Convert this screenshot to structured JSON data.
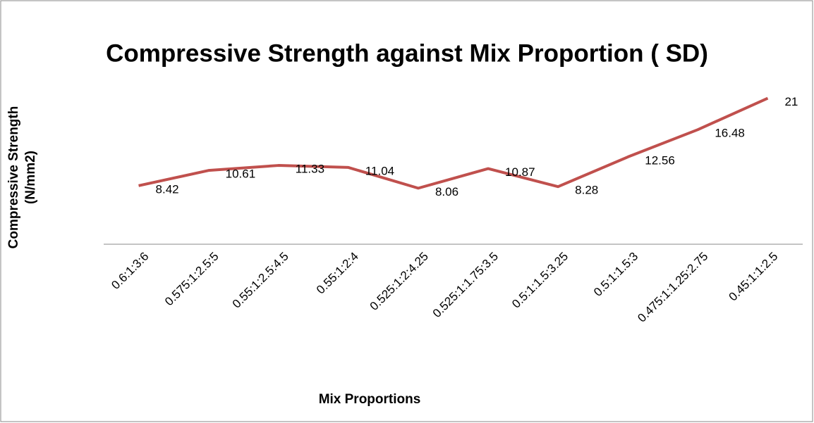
{
  "chart_data": {
    "type": "line",
    "title": "Compressive Strength against Mix Proportion ( SD)",
    "x_label": "Mix Proportions",
    "y_label": "Compressive Strength (N/mm2)",
    "categories": [
      "0.6:1:3:6",
      "0.575:1:2.5:5",
      "0.55:1:2.5:4.5",
      "0.55:1:2:4",
      "0.525:1:2:4.25",
      "0.525:1:1.75:3.5",
      "0.5:1:1.5:3.25",
      "0.5:1:1.5:3",
      "0.475:1:1.25:2.75",
      "0.45:1:1:2.5"
    ],
    "series": [
      {
        "name": "Compressive Strength",
        "color": "#c0504d",
        "values": [
          8.42,
          10.61,
          11.33,
          11.04,
          8.06,
          10.87,
          8.28,
          12.56,
          16.48,
          21
        ]
      }
    ],
    "ylim": [
      0,
      25
    ]
  }
}
